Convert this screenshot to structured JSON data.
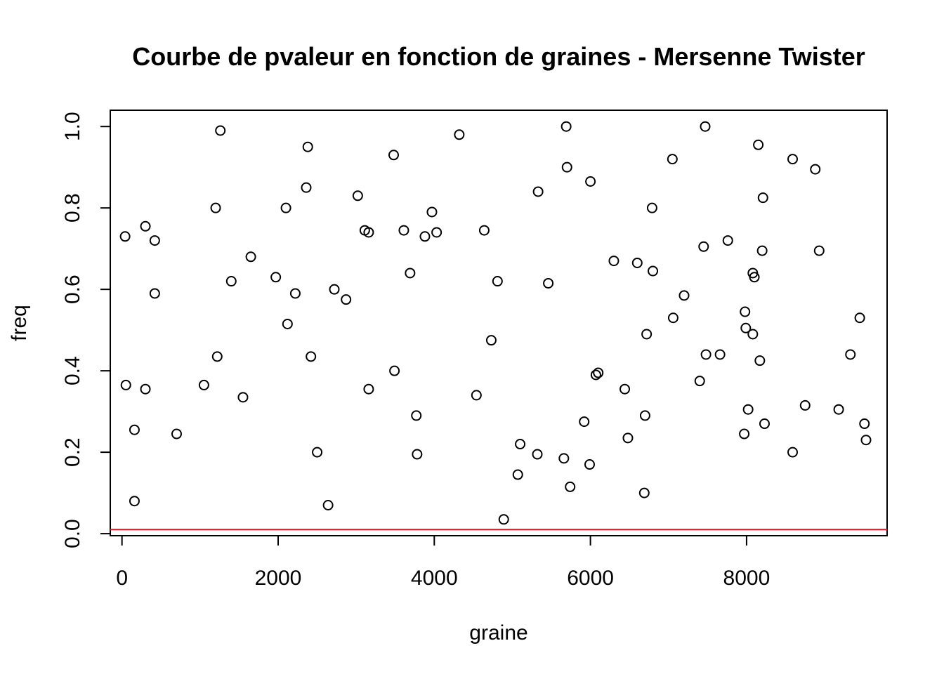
{
  "chart_data": {
    "type": "scatter",
    "title": "Courbe de pvaleur en fonction de graines - Mersenne Twister",
    "xlabel": "graine",
    "ylabel": "freq",
    "xlim": [
      -150,
      9800
    ],
    "ylim": [
      -0.005,
      1.04
    ],
    "x_ticks": [
      0,
      2000,
      4000,
      6000,
      8000
    ],
    "x_tick_labels": [
      "0",
      "2000",
      "4000",
      "6000",
      "8000"
    ],
    "y_ticks": [
      0.0,
      0.2,
      0.4,
      0.6,
      0.8,
      1.0
    ],
    "y_tick_labels": [
      "0.0",
      "0.2",
      "0.4",
      "0.6",
      "0.8",
      "1.0"
    ],
    "grid": false,
    "reference_line": {
      "y": 0.01,
      "color": "#e8121e"
    },
    "point_color": "#000000",
    "points": [
      {
        "x": 40,
        "y": 0.73
      },
      {
        "x": 50,
        "y": 0.365
      },
      {
        "x": 160,
        "y": 0.08
      },
      {
        "x": 160,
        "y": 0.255
      },
      {
        "x": 300,
        "y": 0.755
      },
      {
        "x": 300,
        "y": 0.355
      },
      {
        "x": 420,
        "y": 0.72
      },
      {
        "x": 420,
        "y": 0.59
      },
      {
        "x": 700,
        "y": 0.245
      },
      {
        "x": 1050,
        "y": 0.365
      },
      {
        "x": 1200,
        "y": 0.8
      },
      {
        "x": 1220,
        "y": 0.435
      },
      {
        "x": 1260,
        "y": 0.99
      },
      {
        "x": 1400,
        "y": 0.62
      },
      {
        "x": 1550,
        "y": 0.335
      },
      {
        "x": 1650,
        "y": 0.68
      },
      {
        "x": 1970,
        "y": 0.63
      },
      {
        "x": 2100,
        "y": 0.8
      },
      {
        "x": 2120,
        "y": 0.515
      },
      {
        "x": 2220,
        "y": 0.59
      },
      {
        "x": 2360,
        "y": 0.85
      },
      {
        "x": 2380,
        "y": 0.95
      },
      {
        "x": 2420,
        "y": 0.435
      },
      {
        "x": 2500,
        "y": 0.2
      },
      {
        "x": 2640,
        "y": 0.07
      },
      {
        "x": 2720,
        "y": 0.6
      },
      {
        "x": 2870,
        "y": 0.575
      },
      {
        "x": 3020,
        "y": 0.83
      },
      {
        "x": 3110,
        "y": 0.745
      },
      {
        "x": 3160,
        "y": 0.74
      },
      {
        "x": 3160,
        "y": 0.355
      },
      {
        "x": 3480,
        "y": 0.93
      },
      {
        "x": 3490,
        "y": 0.4
      },
      {
        "x": 3610,
        "y": 0.745
      },
      {
        "x": 3690,
        "y": 0.64
      },
      {
        "x": 3770,
        "y": 0.29
      },
      {
        "x": 3780,
        "y": 0.195
      },
      {
        "x": 3880,
        "y": 0.73
      },
      {
        "x": 3970,
        "y": 0.79
      },
      {
        "x": 4030,
        "y": 0.74
      },
      {
        "x": 4320,
        "y": 0.98
      },
      {
        "x": 4540,
        "y": 0.34
      },
      {
        "x": 4640,
        "y": 0.745
      },
      {
        "x": 4730,
        "y": 0.475
      },
      {
        "x": 4810,
        "y": 0.62
      },
      {
        "x": 4890,
        "y": 0.035
      },
      {
        "x": 5070,
        "y": 0.145
      },
      {
        "x": 5100,
        "y": 0.22
      },
      {
        "x": 5320,
        "y": 0.195
      },
      {
        "x": 5330,
        "y": 0.84
      },
      {
        "x": 5460,
        "y": 0.615
      },
      {
        "x": 5660,
        "y": 0.185
      },
      {
        "x": 5690,
        "y": 1.0
      },
      {
        "x": 5700,
        "y": 0.9
      },
      {
        "x": 5740,
        "y": 0.115
      },
      {
        "x": 5920,
        "y": 0.275
      },
      {
        "x": 5990,
        "y": 0.17
      },
      {
        "x": 6000,
        "y": 0.865
      },
      {
        "x": 6070,
        "y": 0.39
      },
      {
        "x": 6100,
        "y": 0.395
      },
      {
        "x": 6300,
        "y": 0.67
      },
      {
        "x": 6440,
        "y": 0.355
      },
      {
        "x": 6480,
        "y": 0.235
      },
      {
        "x": 6600,
        "y": 0.665
      },
      {
        "x": 6690,
        "y": 0.1
      },
      {
        "x": 6700,
        "y": 0.29
      },
      {
        "x": 6720,
        "y": 0.49
      },
      {
        "x": 6790,
        "y": 0.8
      },
      {
        "x": 6800,
        "y": 0.645
      },
      {
        "x": 7050,
        "y": 0.92
      },
      {
        "x": 7060,
        "y": 0.53
      },
      {
        "x": 7200,
        "y": 0.585
      },
      {
        "x": 7400,
        "y": 0.375
      },
      {
        "x": 7450,
        "y": 0.705
      },
      {
        "x": 7470,
        "y": 1.0
      },
      {
        "x": 7480,
        "y": 0.44
      },
      {
        "x": 7660,
        "y": 0.44
      },
      {
        "x": 7760,
        "y": 0.72
      },
      {
        "x": 7970,
        "y": 0.245
      },
      {
        "x": 7980,
        "y": 0.545
      },
      {
        "x": 7990,
        "y": 0.505
      },
      {
        "x": 8020,
        "y": 0.305
      },
      {
        "x": 8080,
        "y": 0.49
      },
      {
        "x": 8080,
        "y": 0.64
      },
      {
        "x": 8100,
        "y": 0.63
      },
      {
        "x": 8150,
        "y": 0.955
      },
      {
        "x": 8170,
        "y": 0.425
      },
      {
        "x": 8200,
        "y": 0.695
      },
      {
        "x": 8210,
        "y": 0.825
      },
      {
        "x": 8230,
        "y": 0.27
      },
      {
        "x": 8590,
        "y": 0.92
      },
      {
        "x": 8590,
        "y": 0.2
      },
      {
        "x": 8750,
        "y": 0.315
      },
      {
        "x": 8880,
        "y": 0.895
      },
      {
        "x": 8930,
        "y": 0.695
      },
      {
        "x": 9180,
        "y": 0.305
      },
      {
        "x": 9330,
        "y": 0.44
      },
      {
        "x": 9450,
        "y": 0.53
      },
      {
        "x": 9510,
        "y": 0.27
      },
      {
        "x": 9530,
        "y": 0.23
      }
    ]
  }
}
